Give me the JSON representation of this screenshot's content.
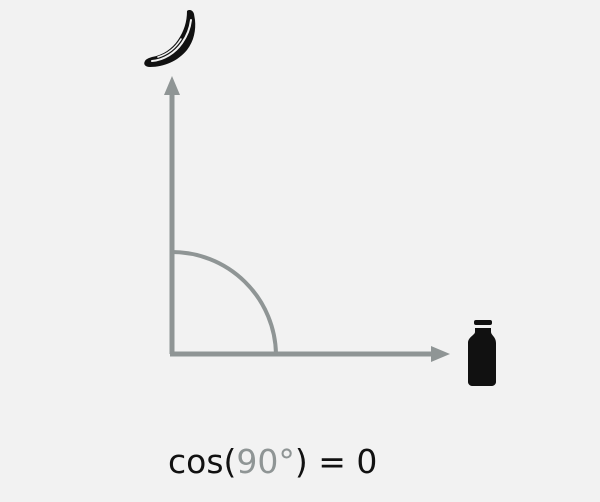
{
  "colors": {
    "background": "#f2f2f2",
    "axis": "#8f9595",
    "icon": "#111111",
    "text": "#111111",
    "highlight": "#8f9595"
  },
  "icons": {
    "top": "banana-icon",
    "right": "bottle-icon"
  },
  "formula": {
    "prefix": "cos(",
    "angle": "90°",
    "suffix": ") = 0"
  }
}
